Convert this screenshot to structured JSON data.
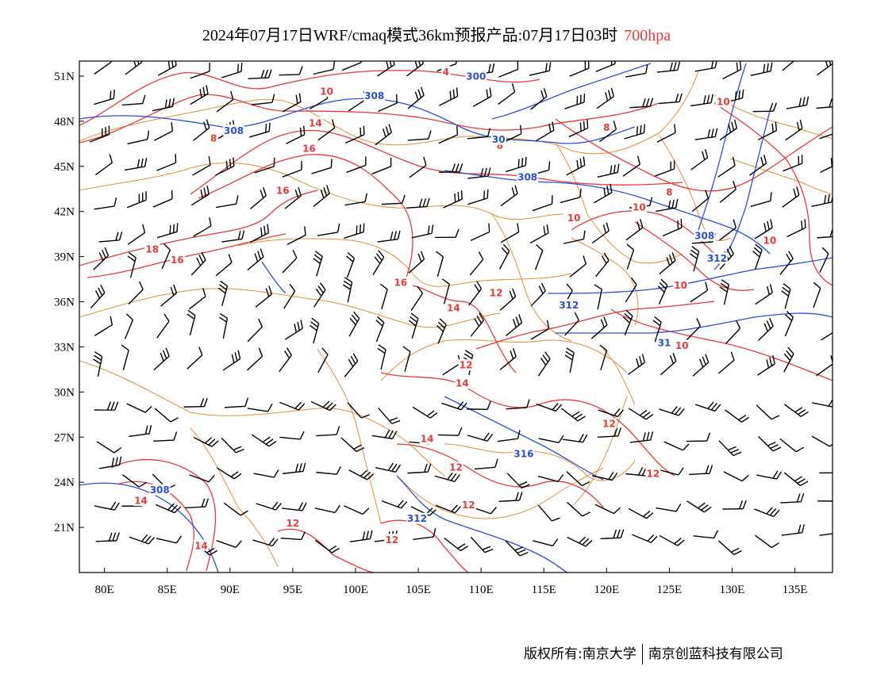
{
  "title": {
    "text": "2024年07月17日WRF/cmaq模式36km预报产品:07月17日03时",
    "level": "700hpa",
    "level_color": "#e83a3a"
  },
  "credit": {
    "left": "版权所有:南京大学",
    "right": "南京创蓝科技有限公司"
  },
  "colors": {
    "temperature_contour": "#e83a3a",
    "height_contour": "#2a4fd6",
    "boundary": "#e0903a",
    "wind_barb": "#000000",
    "frame": "#000000"
  },
  "map": {
    "lon_range": [
      78,
      138
    ],
    "lat_range": [
      18,
      52
    ],
    "lat_ticks": [
      "51N",
      "48N",
      "45N",
      "42N",
      "39N",
      "36N",
      "33N",
      "30N",
      "27N",
      "24N",
      "21N"
    ],
    "lon_ticks": [
      "80E",
      "85E",
      "90E",
      "95E",
      "100E",
      "105E",
      "110E",
      "115E",
      "120E",
      "125E",
      "130E",
      "135E"
    ]
  },
  "contour_labels": {
    "temperature": [
      {
        "text": "4",
        "lon": 107.2,
        "lat": 51.3
      },
      {
        "text": "10",
        "lon": 97.7,
        "lat": 50.0
      },
      {
        "text": "14",
        "lon": 96.8,
        "lat": 47.9
      },
      {
        "text": "8",
        "lon": 88.7,
        "lat": 46.9
      },
      {
        "text": "16",
        "lon": 96.3,
        "lat": 46.2
      },
      {
        "text": "16",
        "lon": 94.2,
        "lat": 43.4
      },
      {
        "text": "18",
        "lon": 83.8,
        "lat": 39.5
      },
      {
        "text": "16",
        "lon": 85.8,
        "lat": 38.8
      },
      {
        "text": "16",
        "lon": 103.6,
        "lat": 37.3
      },
      {
        "text": "14",
        "lon": 107.8,
        "lat": 35.6
      },
      {
        "text": "12",
        "lon": 111.2,
        "lat": 36.6
      },
      {
        "text": "8",
        "lon": 111.5,
        "lat": 46.4
      },
      {
        "text": "8",
        "lon": 120.0,
        "lat": 47.6
      },
      {
        "text": "10",
        "lon": 129.3,
        "lat": 49.3
      },
      {
        "text": "8",
        "lon": 125.0,
        "lat": 43.3
      },
      {
        "text": "10",
        "lon": 122.6,
        "lat": 42.3
      },
      {
        "text": "10",
        "lon": 117.4,
        "lat": 41.6
      },
      {
        "text": "10",
        "lon": 133.0,
        "lat": 40.1
      },
      {
        "text": "10",
        "lon": 125.9,
        "lat": 37.1
      },
      {
        "text": "10",
        "lon": 126.0,
        "lat": 33.1
      },
      {
        "text": "12",
        "lon": 108.8,
        "lat": 31.8
      },
      {
        "text": "14",
        "lon": 108.5,
        "lat": 30.6
      },
      {
        "text": "12",
        "lon": 120.2,
        "lat": 27.9
      },
      {
        "text": "14",
        "lon": 105.7,
        "lat": 26.9
      },
      {
        "text": "12",
        "lon": 108.0,
        "lat": 25.0
      },
      {
        "text": "12",
        "lon": 123.7,
        "lat": 24.6
      },
      {
        "text": "14",
        "lon": 82.9,
        "lat": 22.8
      },
      {
        "text": "12",
        "lon": 95.0,
        "lat": 21.3
      },
      {
        "text": "12",
        "lon": 109.0,
        "lat": 22.5
      },
      {
        "text": "14",
        "lon": 87.7,
        "lat": 19.8
      },
      {
        "text": "12",
        "lon": 102.9,
        "lat": 20.2
      }
    ],
    "height": [
      {
        "text": "300",
        "lon": 109.6,
        "lat": 51.0
      },
      {
        "text": "308",
        "lon": 101.5,
        "lat": 49.7
      },
      {
        "text": "308",
        "lon": 90.3,
        "lat": 47.4
      },
      {
        "text": "30",
        "lon": 111.4,
        "lat": 46.8
      },
      {
        "text": "308",
        "lon": 113.7,
        "lat": 44.3
      },
      {
        "text": "308",
        "lon": 127.8,
        "lat": 40.4
      },
      {
        "text": "312",
        "lon": 128.8,
        "lat": 38.9
      },
      {
        "text": "312",
        "lon": 117.0,
        "lat": 35.8
      },
      {
        "text": "31",
        "lon": 124.6,
        "lat": 33.3
      },
      {
        "text": "316",
        "lon": 113.4,
        "lat": 25.9
      },
      {
        "text": "308",
        "lon": 84.4,
        "lat": 23.5
      },
      {
        "text": "312",
        "lon": 104.9,
        "lat": 21.6
      }
    ]
  },
  "wind_barbs": {
    "lon_step": 2.5,
    "lat_step": 2.2,
    "note": "grid of wind barbs over domain"
  }
}
